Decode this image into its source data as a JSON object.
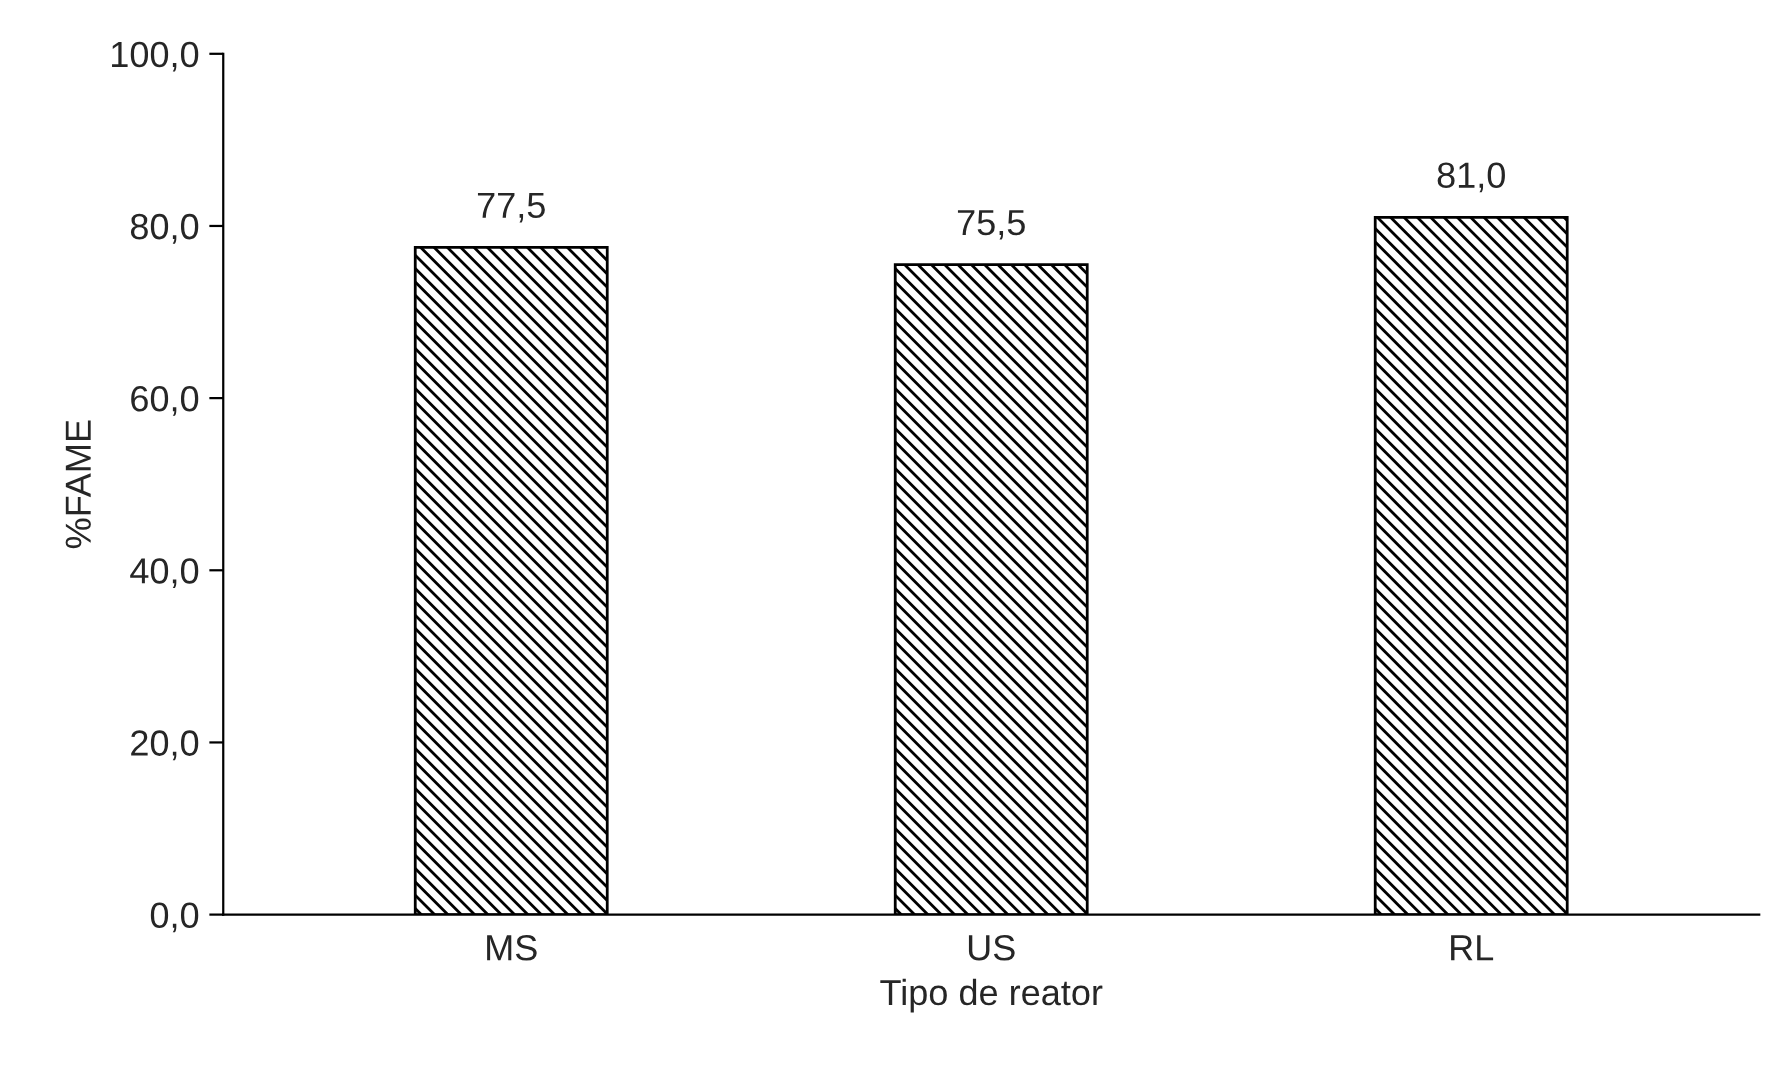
{
  "chart_data": {
    "type": "bar",
    "xlabel": "Tipo de reator",
    "ylabel": "%FAME",
    "categories": [
      "MS",
      "US",
      "RL"
    ],
    "values": [
      77.5,
      75.5,
      81.0
    ],
    "value_labels": [
      "77,5",
      "75,5",
      "81,0"
    ],
    "color": "#000000",
    "ylim": [
      0,
      100
    ],
    "yticks": [
      {
        "value": 0,
        "label": "0,0"
      },
      {
        "value": 20,
        "label": "20,0"
      },
      {
        "value": 40,
        "label": "40,0"
      },
      {
        "value": 60,
        "label": "60,0"
      },
      {
        "value": 80,
        "label": "80,0"
      },
      {
        "value": 100,
        "label": "100,0"
      }
    ],
    "grid": false,
    "legend": false
  }
}
